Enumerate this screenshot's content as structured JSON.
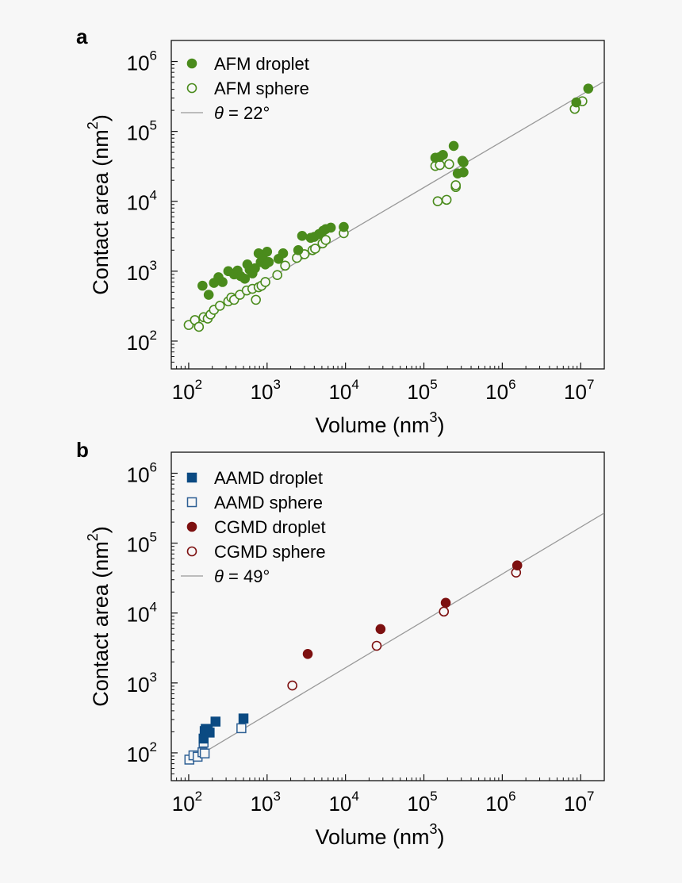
{
  "chart_data": [
    {
      "panel": "a",
      "type": "scatter",
      "xscale": "log",
      "yscale": "log",
      "xlabel": "Volume (nm",
      "xlabel_sup": "3",
      "xlabel_tail": ")",
      "ylabel": "Contact area (nm",
      "ylabel_sup": "2",
      "ylabel_tail": ")",
      "xlim": [
        60,
        20000000
      ],
      "ylim": [
        40,
        2000000
      ],
      "x_ticks": [
        {
          "base": "10",
          "exp": "2",
          "value": 100
        },
        {
          "base": "10",
          "exp": "3",
          "value": 1000
        },
        {
          "base": "10",
          "exp": "4",
          "value": 10000
        },
        {
          "base": "10",
          "exp": "5",
          "value": 100000
        },
        {
          "base": "10",
          "exp": "6",
          "value": 1000000
        },
        {
          "base": "10",
          "exp": "7",
          "value": 10000000
        }
      ],
      "y_ticks": [
        {
          "base": "10",
          "exp": "2",
          "value": 100
        },
        {
          "base": "10",
          "exp": "3",
          "value": 1000
        },
        {
          "base": "10",
          "exp": "4",
          "value": 10000
        },
        {
          "base": "10",
          "exp": "5",
          "value": 100000
        },
        {
          "base": "10",
          "exp": "6",
          "value": 1000000
        }
      ],
      "legend_position": "top-left",
      "series": [
        {
          "name": "AFM droplet",
          "marker": "circle",
          "filled": true,
          "color": "#4a8b1c",
          "points": [
            [
              150,
              620
            ],
            [
              180,
              460
            ],
            [
              210,
              680
            ],
            [
              240,
              820
            ],
            [
              270,
              700
            ],
            [
              320,
              1000
            ],
            [
              380,
              900
            ],
            [
              420,
              1020
            ],
            [
              460,
              850
            ],
            [
              520,
              780
            ],
            [
              560,
              1250
            ],
            [
              600,
              1050
            ],
            [
              650,
              930
            ],
            [
              700,
              1100
            ],
            [
              780,
              1800
            ],
            [
              830,
              1350
            ],
            [
              880,
              1550
            ],
            [
              950,
              1250
            ],
            [
              1000,
              1900
            ],
            [
              1050,
              1350
            ],
            [
              1400,
              1500
            ],
            [
              1600,
              1800
            ],
            [
              2500,
              2000
            ],
            [
              2800,
              3200
            ],
            [
              3600,
              3000
            ],
            [
              4000,
              3100
            ],
            [
              4600,
              3400
            ],
            [
              5200,
              3800
            ],
            [
              5600,
              4000
            ],
            [
              6500,
              4200
            ],
            [
              9500,
              4300
            ],
            [
              140000,
              42000
            ],
            [
              160000,
              43000
            ],
            [
              175000,
              46000
            ],
            [
              240000,
              62000
            ],
            [
              270000,
              25000
            ],
            [
              310000,
              38000
            ],
            [
              320000,
              36000
            ],
            [
              320000,
              26000
            ],
            [
              8800000,
              260000
            ],
            [
              12500000,
              410000
            ]
          ]
        },
        {
          "name": "AFM sphere",
          "marker": "circle",
          "filled": false,
          "color": "#4a8b1c",
          "points": [
            [
              100,
              170
            ],
            [
              120,
              200
            ],
            [
              135,
              160
            ],
            [
              155,
              220
            ],
            [
              175,
              210
            ],
            [
              190,
              240
            ],
            [
              210,
              280
            ],
            [
              250,
              320
            ],
            [
              320,
              370
            ],
            [
              350,
              420
            ],
            [
              380,
              390
            ],
            [
              450,
              460
            ],
            [
              550,
              530
            ],
            [
              650,
              560
            ],
            [
              720,
              390
            ],
            [
              780,
              590
            ],
            [
              850,
              620
            ],
            [
              950,
              700
            ],
            [
              1350,
              880
            ],
            [
              1700,
              1200
            ],
            [
              2400,
              1550
            ],
            [
              3000,
              1750
            ],
            [
              3800,
              2000
            ],
            [
              4100,
              2100
            ],
            [
              5100,
              2500
            ],
            [
              5600,
              2800
            ],
            [
              9500,
              3500
            ],
            [
              140000,
              32000
            ],
            [
              160000,
              33000
            ],
            [
              150000,
              10000
            ],
            [
              195000,
              10500
            ],
            [
              210000,
              34000
            ],
            [
              255000,
              16000
            ],
            [
              255000,
              17000
            ],
            [
              8400000,
              210000
            ],
            [
              10500000,
              270000
            ]
          ]
        }
      ],
      "fit_line": {
        "label_symbol": "θ",
        "label_text": " = 22°",
        "points": [
          [
            100,
            165
          ],
          [
            20000000,
            520000
          ]
        ],
        "color": "#999999"
      }
    },
    {
      "panel": "b",
      "type": "scatter",
      "xscale": "log",
      "yscale": "log",
      "xlabel": "Volume (nm",
      "xlabel_sup": "3",
      "xlabel_tail": ")",
      "ylabel": "Contact area (nm",
      "ylabel_sup": "2",
      "ylabel_tail": ")",
      "xlim": [
        60,
        20000000
      ],
      "ylim": [
        40,
        2000000
      ],
      "x_ticks": [
        {
          "base": "10",
          "exp": "2",
          "value": 100
        },
        {
          "base": "10",
          "exp": "3",
          "value": 1000
        },
        {
          "base": "10",
          "exp": "4",
          "value": 10000
        },
        {
          "base": "10",
          "exp": "5",
          "value": 100000
        },
        {
          "base": "10",
          "exp": "6",
          "value": 1000000
        },
        {
          "base": "10",
          "exp": "7",
          "value": 10000000
        }
      ],
      "y_ticks": [
        {
          "base": "10",
          "exp": "2",
          "value": 100
        },
        {
          "base": "10",
          "exp": "3",
          "value": 1000
        },
        {
          "base": "10",
          "exp": "4",
          "value": 10000
        },
        {
          "base": "10",
          "exp": "5",
          "value": 100000
        },
        {
          "base": "10",
          "exp": "6",
          "value": 1000000
        }
      ],
      "legend_position": "top-left",
      "series": [
        {
          "name": "AAMD droplet",
          "marker": "square",
          "filled": true,
          "color": "#0b4a82",
          "points": [
            [
              155,
              160
            ],
            [
              160,
              205
            ],
            [
              165,
              220
            ],
            [
              175,
              215
            ],
            [
              185,
              195
            ],
            [
              220,
              280
            ],
            [
              500,
              310
            ]
          ]
        },
        {
          "name": "AAMD sphere",
          "marker": "square",
          "filled": false,
          "color": "#2d5f94",
          "points": [
            [
              102,
              80
            ],
            [
              115,
              92
            ],
            [
              130,
              88
            ],
            [
              150,
              102
            ],
            [
              155,
              140
            ],
            [
              160,
              98
            ],
            [
              470,
              225
            ]
          ]
        },
        {
          "name": "CGMD droplet",
          "marker": "circle",
          "filled": true,
          "color": "#7d1010",
          "points": [
            [
              3300,
              2600
            ],
            [
              28000,
              5900
            ],
            [
              190000,
              14000
            ],
            [
              1550000,
              48000
            ]
          ]
        },
        {
          "name": "CGMD sphere",
          "marker": "circle",
          "filled": false,
          "color": "#7d1010",
          "points": [
            [
              2100,
              920
            ],
            [
              25000,
              3400
            ],
            [
              180000,
              10500
            ],
            [
              1500000,
              38000
            ]
          ]
        }
      ],
      "fit_line": {
        "label_symbol": "θ",
        "label_text": " = 49°",
        "points": [
          [
            100,
            75
          ],
          [
            20000000,
            270000
          ]
        ],
        "color": "#999999"
      }
    }
  ]
}
